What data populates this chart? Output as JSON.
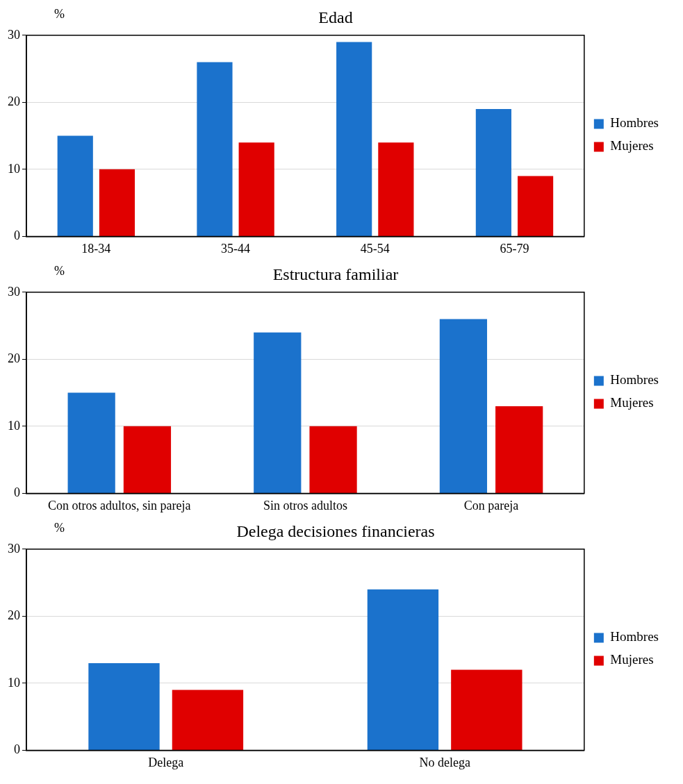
{
  "chart_data": [
    {
      "type": "bar",
      "title": "Edad",
      "ylabel": "%",
      "categories": [
        "18-34",
        "35-44",
        "45-54",
        "65-79"
      ],
      "series": [
        {
          "name": "Hombres",
          "color": "#1b72cc",
          "values": [
            15,
            26,
            29,
            19
          ]
        },
        {
          "name": "Mujeres",
          "color": "#e00000",
          "values": [
            10,
            14,
            14,
            9
          ]
        }
      ],
      "ylim": [
        0,
        30
      ],
      "yticks": [
        0,
        10,
        20,
        30
      ],
      "grid": "y",
      "legend": "right"
    },
    {
      "type": "bar",
      "title": "Estructura familiar",
      "ylabel": "%",
      "categories": [
        "Con otros adultos, sin pareja",
        "Sin otros adultos",
        "Con pareja"
      ],
      "series": [
        {
          "name": "Hombres",
          "color": "#1b72cc",
          "values": [
            15,
            24,
            26
          ]
        },
        {
          "name": "Mujeres",
          "color": "#e00000",
          "values": [
            10,
            10,
            13
          ]
        }
      ],
      "ylim": [
        0,
        30
      ],
      "yticks": [
        0,
        10,
        20,
        30
      ],
      "grid": "y",
      "legend": "right"
    },
    {
      "type": "bar",
      "title": "Delega decisiones financieras",
      "ylabel": "%",
      "categories": [
        "Delega",
        "No delega"
      ],
      "series": [
        {
          "name": "Hombres",
          "color": "#1b72cc",
          "values": [
            13,
            24
          ]
        },
        {
          "name": "Mujeres",
          "color": "#e00000",
          "values": [
            9,
            12
          ]
        }
      ],
      "ylim": [
        0,
        30
      ],
      "yticks": [
        0,
        10,
        20,
        30
      ],
      "grid": "y",
      "legend": "right"
    }
  ]
}
